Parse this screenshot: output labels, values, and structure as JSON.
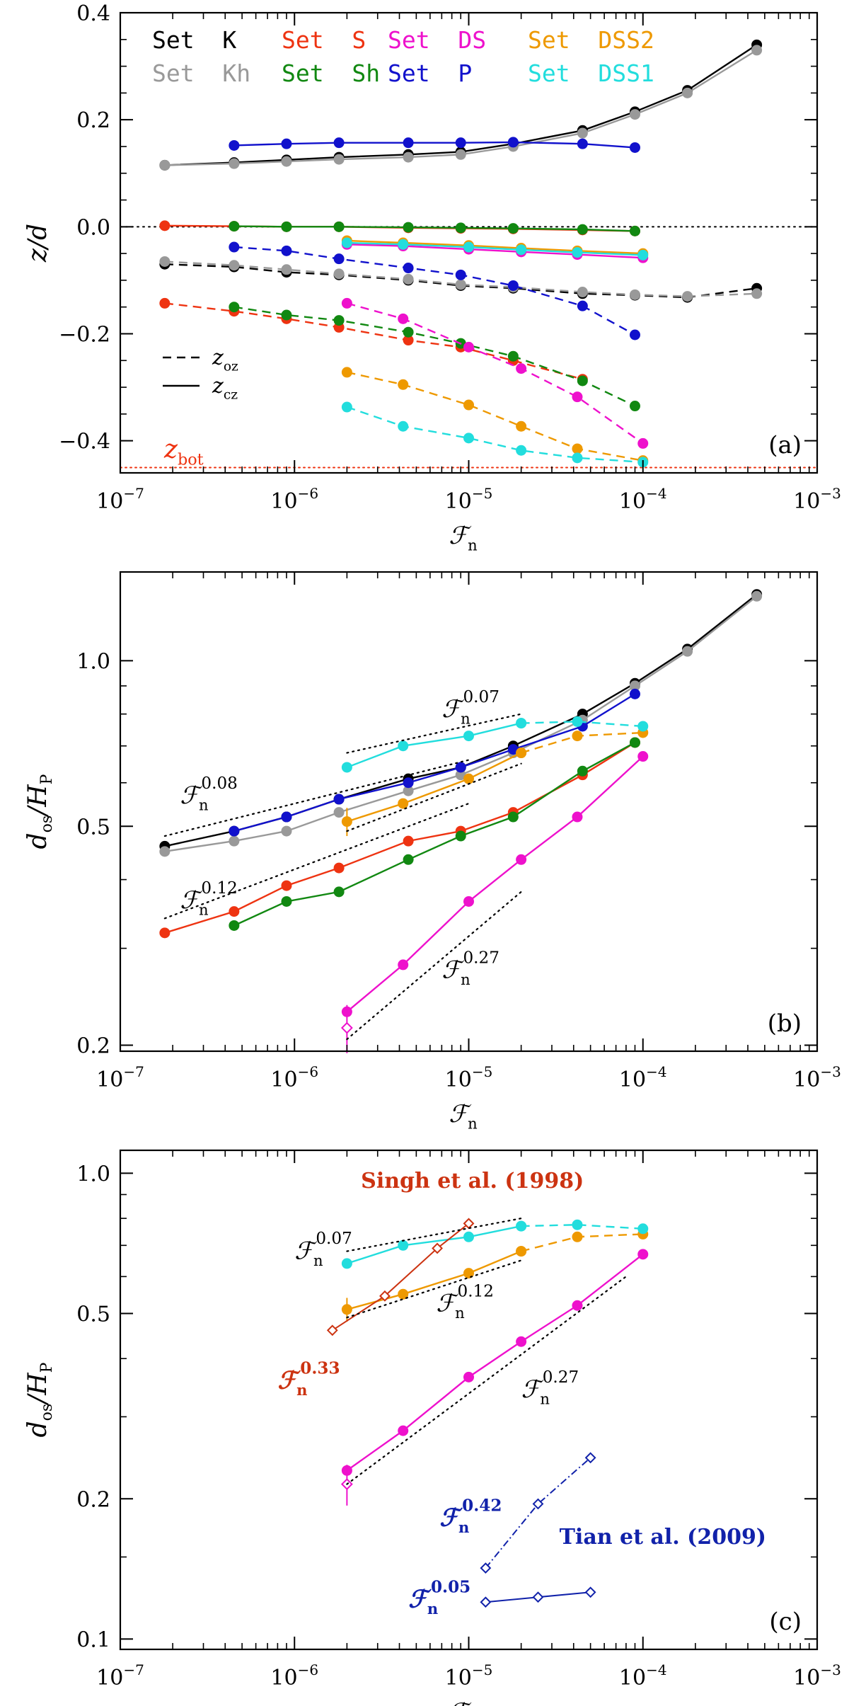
{
  "colors": {
    "K": "#000000",
    "Kh": "#999999",
    "S": "#ee3311",
    "Sh": "#118811",
    "DS": "#ee11cc",
    "P": "#1111cc",
    "DSS2": "#ee9900",
    "DSS1": "#22dddd",
    "singh": "#cc3311",
    "tian": "#1122aa",
    "zbot": "#ee3311"
  },
  "chart_data": [
    {
      "type": "line",
      "panel": "(a)",
      "xlabel": "ℱ",
      "xlabel_sub": "n",
      "ylabel": "z/d",
      "xscale": "log",
      "xlim": [
        1e-07,
        0.001
      ],
      "ylim": [
        -0.46,
        0.4
      ],
      "yticks": [
        -0.4,
        -0.2,
        0.0,
        0.2,
        0.4
      ],
      "ytick_labels": [
        "−0.4",
        "−0.2",
        "0.0",
        "0.2",
        "0.4"
      ],
      "zero_line": 0.0,
      "zbot": -0.45,
      "zbot_label": "z",
      "zbot_sub": "bot",
      "legend": [
        {
          "key": "K",
          "label": "Set  K"
        },
        {
          "key": "S",
          "label": "Set  S"
        },
        {
          "key": "DS",
          "label": "Set  DS"
        },
        {
          "key": "DSS2",
          "label": "Set  DSS2"
        },
        {
          "key": "Kh",
          "label": "Set  Kh"
        },
        {
          "key": "Sh",
          "label": "Set  Sh"
        },
        {
          "key": "P",
          "label": "Set  P"
        },
        {
          "key": "DSS1",
          "label": "Set  DSS1"
        }
      ],
      "line_legend": [
        {
          "style": "dashed",
          "label": "z",
          "sub": "oz"
        },
        {
          "style": "solid",
          "label": "z",
          "sub": "cz"
        }
      ],
      "series": [
        {
          "key": "K",
          "dash": false,
          "x": [
            1.8e-07,
            4.5e-07,
            9e-07,
            1.8e-06,
            4.5e-06,
            9e-06,
            1.8e-05,
            4.5e-05,
            9e-05,
            0.00018,
            0.00045
          ],
          "y": [
            0.115,
            0.12,
            0.125,
            0.13,
            0.135,
            0.14,
            0.155,
            0.18,
            0.215,
            0.255,
            0.34
          ]
        },
        {
          "key": "Kh",
          "dash": false,
          "x": [
            1.8e-07,
            4.5e-07,
            9e-07,
            1.8e-06,
            4.5e-06,
            9e-06,
            1.8e-05,
            4.5e-05,
            9e-05,
            0.00018,
            0.00045
          ],
          "y": [
            0.115,
            0.118,
            0.122,
            0.126,
            0.13,
            0.135,
            0.15,
            0.175,
            0.21,
            0.25,
            0.33
          ]
        },
        {
          "key": "P",
          "dash": false,
          "x": [
            4.5e-07,
            9e-07,
            1.8e-06,
            4.5e-06,
            9e-06,
            1.8e-05,
            4.5e-05,
            9e-05
          ],
          "y": [
            0.152,
            0.155,
            0.157,
            0.157,
            0.157,
            0.158,
            0.155,
            0.148
          ]
        },
        {
          "key": "S",
          "dash": false,
          "x": [
            1.8e-07,
            4.5e-07,
            9e-07,
            1.8e-06,
            4.5e-06,
            9e-06,
            1.8e-05,
            4.5e-05,
            9e-05
          ],
          "y": [
            0.002,
            0.001,
            0.0,
            0.0,
            -0.002,
            -0.003,
            -0.004,
            -0.006,
            -0.008
          ]
        },
        {
          "key": "Sh",
          "dash": false,
          "x": [
            4.5e-07,
            9e-07,
            1.8e-06,
            4.5e-06,
            9e-06,
            1.8e-05,
            4.5e-05,
            9e-05
          ],
          "y": [
            0.001,
            0.0,
            0.0,
            -0.001,
            -0.002,
            -0.003,
            -0.005,
            -0.008
          ]
        },
        {
          "key": "DS",
          "dash": false,
          "x": [
            2e-06,
            4.2e-06,
            1e-05,
            2e-05,
            4.2e-05,
            0.0001
          ],
          "y": [
            -0.033,
            -0.036,
            -0.042,
            -0.047,
            -0.052,
            -0.058
          ]
        },
        {
          "key": "DSS2",
          "dash": false,
          "x": [
            2e-06,
            4.2e-06,
            1e-05,
            2e-05,
            4.2e-05,
            0.0001
          ],
          "y": [
            -0.026,
            -0.03,
            -0.035,
            -0.04,
            -0.045,
            -0.05
          ]
        },
        {
          "key": "DSS1",
          "dash": false,
          "x": [
            2e-06,
            4.2e-06,
            1e-05,
            2e-05,
            4.2e-05,
            0.0001
          ],
          "y": [
            -0.03,
            -0.033,
            -0.038,
            -0.043,
            -0.048,
            -0.053
          ]
        },
        {
          "key": "K",
          "dash": true,
          "x": [
            1.8e-07,
            4.5e-07,
            9e-07,
            1.8e-06,
            4.5e-06,
            9e-06,
            1.8e-05,
            4.5e-05,
            9e-05,
            0.00018,
            0.00045
          ],
          "y": [
            -0.07,
            -0.075,
            -0.085,
            -0.09,
            -0.1,
            -0.11,
            -0.115,
            -0.125,
            -0.128,
            -0.132,
            -0.115
          ]
        },
        {
          "key": "Kh",
          "dash": true,
          "x": [
            1.8e-07,
            4.5e-07,
            9e-07,
            1.8e-06,
            4.5e-06,
            9e-06,
            1.8e-05,
            4.5e-05,
            9e-05,
            0.00018,
            0.00045
          ],
          "y": [
            -0.065,
            -0.072,
            -0.08,
            -0.088,
            -0.098,
            -0.108,
            -0.113,
            -0.122,
            -0.127,
            -0.13,
            -0.125
          ]
        },
        {
          "key": "P",
          "dash": true,
          "x": [
            4.5e-07,
            9e-07,
            1.8e-06,
            4.5e-06,
            9e-06,
            1.8e-05,
            4.5e-05,
            9e-05
          ],
          "y": [
            -0.038,
            -0.045,
            -0.06,
            -0.077,
            -0.09,
            -0.11,
            -0.148,
            -0.202
          ]
        },
        {
          "key": "S",
          "dash": true,
          "x": [
            1.8e-07,
            4.5e-07,
            9e-07,
            1.8e-06,
            4.5e-06,
            9e-06,
            1.8e-05,
            4.5e-05
          ],
          "y": [
            -0.143,
            -0.158,
            -0.172,
            -0.188,
            -0.212,
            -0.225,
            -0.25,
            -0.285
          ]
        },
        {
          "key": "Sh",
          "dash": true,
          "x": [
            4.5e-07,
            9e-07,
            1.8e-06,
            4.5e-06,
            9e-06,
            1.8e-05,
            4.5e-05,
            9e-05
          ],
          "y": [
            -0.15,
            -0.165,
            -0.175,
            -0.197,
            -0.218,
            -0.242,
            -0.288,
            -0.335
          ]
        },
        {
          "key": "DS",
          "dash": true,
          "x": [
            2e-06,
            4.2e-06,
            1e-05,
            2e-05,
            4.2e-05,
            0.0001
          ],
          "y": [
            -0.143,
            -0.172,
            -0.225,
            -0.265,
            -0.318,
            -0.405
          ]
        },
        {
          "key": "DSS2",
          "dash": true,
          "x": [
            2e-06,
            4.2e-06,
            1e-05,
            2e-05,
            4.2e-05,
            0.0001
          ],
          "y": [
            -0.272,
            -0.295,
            -0.333,
            -0.373,
            -0.415,
            -0.437
          ]
        },
        {
          "key": "DSS1",
          "dash": true,
          "x": [
            2e-06,
            4.2e-06,
            1e-05,
            2e-05,
            4.2e-05,
            0.0001
          ],
          "y": [
            -0.337,
            -0.373,
            -0.395,
            -0.418,
            -0.432,
            -0.44
          ]
        }
      ]
    },
    {
      "type": "line",
      "panel": "(b)",
      "xlabel": "ℱ",
      "xlabel_sub": "n",
      "ylabel": "d",
      "ylabel_sub": "os",
      "ylabel_tail": "/H",
      "ylabel_tail_sub": "P",
      "xscale": "log",
      "yscale": "log",
      "xlim": [
        1e-07,
        0.001
      ],
      "ylim": [
        0.195,
        1.45
      ],
      "yticks": [
        0.2,
        0.5,
        1.0
      ],
      "ytick_labels": [
        "0.2",
        "0.5",
        "1.0"
      ],
      "series": [
        {
          "key": "K",
          "dash": false,
          "x": [
            1.8e-07,
            4.5e-07,
            9e-07,
            1.8e-06,
            4.5e-06,
            9e-06,
            1.8e-05,
            4.5e-05,
            9e-05,
            0.00018,
            0.00045
          ],
          "y": [
            0.46,
            0.49,
            0.52,
            0.56,
            0.61,
            0.64,
            0.7,
            0.8,
            0.91,
            1.05,
            1.32
          ]
        },
        {
          "key": "Kh",
          "dash": false,
          "x": [
            1.8e-07,
            4.5e-07,
            9e-07,
            1.8e-06,
            4.5e-06,
            9e-06,
            1.8e-05,
            4.5e-05,
            9e-05,
            0.00018,
            0.00045
          ],
          "y": [
            0.45,
            0.47,
            0.49,
            0.53,
            0.58,
            0.62,
            0.68,
            0.78,
            0.9,
            1.04,
            1.31
          ]
        },
        {
          "key": "P",
          "dash": false,
          "x": [
            4.5e-07,
            9e-07,
            1.8e-06,
            4.5e-06,
            9e-06,
            1.8e-05,
            4.5e-05,
            9e-05
          ],
          "y": [
            0.49,
            0.52,
            0.56,
            0.6,
            0.64,
            0.69,
            0.76,
            0.87
          ]
        },
        {
          "key": "S",
          "dash": false,
          "x": [
            1.8e-07,
            4.5e-07,
            9e-07,
            1.8e-06,
            4.5e-06,
            9e-06,
            1.8e-05,
            4.5e-05,
            9e-05
          ],
          "y": [
            0.32,
            0.35,
            0.39,
            0.42,
            0.47,
            0.49,
            0.53,
            0.62,
            0.71
          ]
        },
        {
          "key": "Sh",
          "dash": false,
          "x": [
            4.5e-07,
            9e-07,
            1.8e-06,
            4.5e-06,
            9e-06,
            1.8e-05,
            4.5e-05,
            9e-05
          ],
          "y": [
            0.33,
            0.365,
            0.38,
            0.435,
            0.48,
            0.52,
            0.63,
            0.71
          ]
        },
        {
          "key": "DS",
          "dash": false,
          "x": [
            2e-06,
            4.2e-06,
            1e-05,
            2e-05,
            4.2e-05,
            0.0001
          ],
          "y": [
            0.23,
            0.28,
            0.365,
            0.435,
            0.52,
            0.67
          ]
        },
        {
          "key": "DSS2",
          "dash": false,
          "x": [
            2e-06,
            4.2e-06,
            1e-05,
            2e-05
          ],
          "y": [
            0.51,
            0.55,
            0.61,
            0.68
          ],
          "err": [
            0.03,
            0,
            0,
            0
          ]
        },
        {
          "key": "DSS2",
          "dash": true,
          "x": [
            2e-05,
            4.2e-05,
            0.0001
          ],
          "y": [
            0.68,
            0.73,
            0.74
          ]
        },
        {
          "key": "DSS1",
          "dash": false,
          "x": [
            2e-06,
            4.2e-06,
            1e-05,
            2e-05
          ],
          "y": [
            0.64,
            0.7,
            0.73,
            0.77
          ]
        },
        {
          "key": "DSS1",
          "dash": true,
          "x": [
            2e-05,
            4.2e-05,
            0.0001
          ],
          "y": [
            0.77,
            0.775,
            0.76
          ]
        }
      ],
      "diamond": {
        "key": "DS",
        "x": 2e-06,
        "y": 0.215,
        "err": 0.012
      },
      "fits": [
        {
          "label": "ℱ",
          "sub": "n",
          "sup": "0.08",
          "x": [
            1.8e-07,
            1e-05
          ],
          "y": [
            0.48,
            0.66
          ]
        },
        {
          "label": "ℱ",
          "sub": "n",
          "sup": "0.12",
          "x": [
            1.8e-07,
            1e-05
          ],
          "y": [
            0.34,
            0.55
          ]
        },
        {
          "label": "ℱ",
          "sub": "n",
          "sup": "0.07",
          "x": [
            2e-06,
            2e-05
          ],
          "y": [
            0.68,
            0.8
          ]
        },
        {
          "label": "ℱ",
          "sub": "n",
          "sup": "0.12",
          "hidelabel": true,
          "x": [
            2e-06,
            2e-05
          ],
          "y": [
            0.49,
            0.65
          ]
        },
        {
          "label": "ℱ",
          "sub": "n",
          "sup": "0.27",
          "x": [
            2e-06,
            2e-05
          ],
          "y": [
            0.205,
            0.38
          ]
        }
      ]
    },
    {
      "type": "line",
      "panel": "(c)",
      "xlabel": "ℱ",
      "xlabel_sub": "n",
      "ylabel": "d",
      "ylabel_sub": "os",
      "ylabel_tail": "/H",
      "ylabel_tail_sub": "P",
      "xscale": "log",
      "yscale": "log",
      "xlim": [
        1e-07,
        0.001
      ],
      "ylim": [
        0.095,
        1.12
      ],
      "yticks": [
        0.1,
        0.2,
        0.5,
        1.0
      ],
      "ytick_labels": [
        "0.1",
        "0.2",
        "0.5",
        "1.0"
      ],
      "series": [
        {
          "key": "DS",
          "dash": false,
          "x": [
            2e-06,
            4.2e-06,
            1e-05,
            2e-05,
            4.2e-05,
            0.0001
          ],
          "y": [
            0.23,
            0.28,
            0.365,
            0.435,
            0.52,
            0.67
          ]
        },
        {
          "key": "DSS2",
          "dash": false,
          "x": [
            2e-06,
            4.2e-06,
            1e-05,
            2e-05
          ],
          "y": [
            0.51,
            0.55,
            0.61,
            0.68
          ],
          "err": [
            0.03,
            0,
            0,
            0
          ]
        },
        {
          "key": "DSS2",
          "dash": true,
          "x": [
            2e-05,
            4.2e-05,
            0.0001
          ],
          "y": [
            0.68,
            0.73,
            0.74
          ]
        },
        {
          "key": "DSS1",
          "dash": false,
          "x": [
            2e-06,
            4.2e-06,
            1e-05,
            2e-05
          ],
          "y": [
            0.64,
            0.7,
            0.73,
            0.77
          ]
        },
        {
          "key": "DSS1",
          "dash": true,
          "x": [
            2e-05,
            4.2e-05,
            0.0001
          ],
          "y": [
            0.77,
            0.775,
            0.76
          ]
        }
      ],
      "diamond": {
        "key": "DS",
        "x": 2e-06,
        "y": 0.215,
        "err": 0.012
      },
      "references": [
        {
          "name": "Singh et al. (1998)",
          "key": "singh",
          "x": [
            1.65e-06,
            3.3e-06,
            6.6e-06,
            1e-05
          ],
          "y": [
            0.46,
            0.545,
            0.69,
            0.78
          ]
        },
        {
          "name": "Tian et al. (2009) upper",
          "key": "tian",
          "dash": true,
          "x": [
            1.25e-05,
            2.5e-05,
            5e-05
          ],
          "y": [
            0.142,
            0.195,
            0.245
          ]
        },
        {
          "name": "Tian et al. (2009) lower",
          "key": "tian",
          "dash": false,
          "x": [
            1.25e-05,
            2.5e-05,
            5e-05
          ],
          "y": [
            0.12,
            0.123,
            0.126
          ]
        }
      ],
      "ref_labels": [
        {
          "text": "Singh et al. (1998)",
          "key": "singh"
        },
        {
          "text": "Tian et al. (2009)",
          "key": "tian"
        }
      ],
      "fits": [
        {
          "label": "ℱ",
          "sub": "n",
          "sup": "0.07",
          "x": [
            2e-06,
            2e-05
          ],
          "y": [
            0.68,
            0.8
          ]
        },
        {
          "label": "ℱ",
          "sub": "n",
          "sup": "0.12",
          "x": [
            2e-06,
            2e-05
          ],
          "y": [
            0.49,
            0.65
          ]
        },
        {
          "label": "ℱ",
          "sub": "n",
          "sup": "0.27",
          "x": [
            2e-06,
            8e-05
          ],
          "y": [
            0.215,
            0.6
          ]
        },
        {
          "label": "ℱ",
          "sub": "n",
          "sup": "0.33",
          "color": "singh",
          "noline": true
        },
        {
          "label": "ℱ",
          "sub": "n",
          "sup": "0.42",
          "color": "tian",
          "noline": true
        },
        {
          "label": "ℱ",
          "sub": "n",
          "sup": "0.05",
          "color": "tian",
          "noline": true
        }
      ]
    }
  ]
}
